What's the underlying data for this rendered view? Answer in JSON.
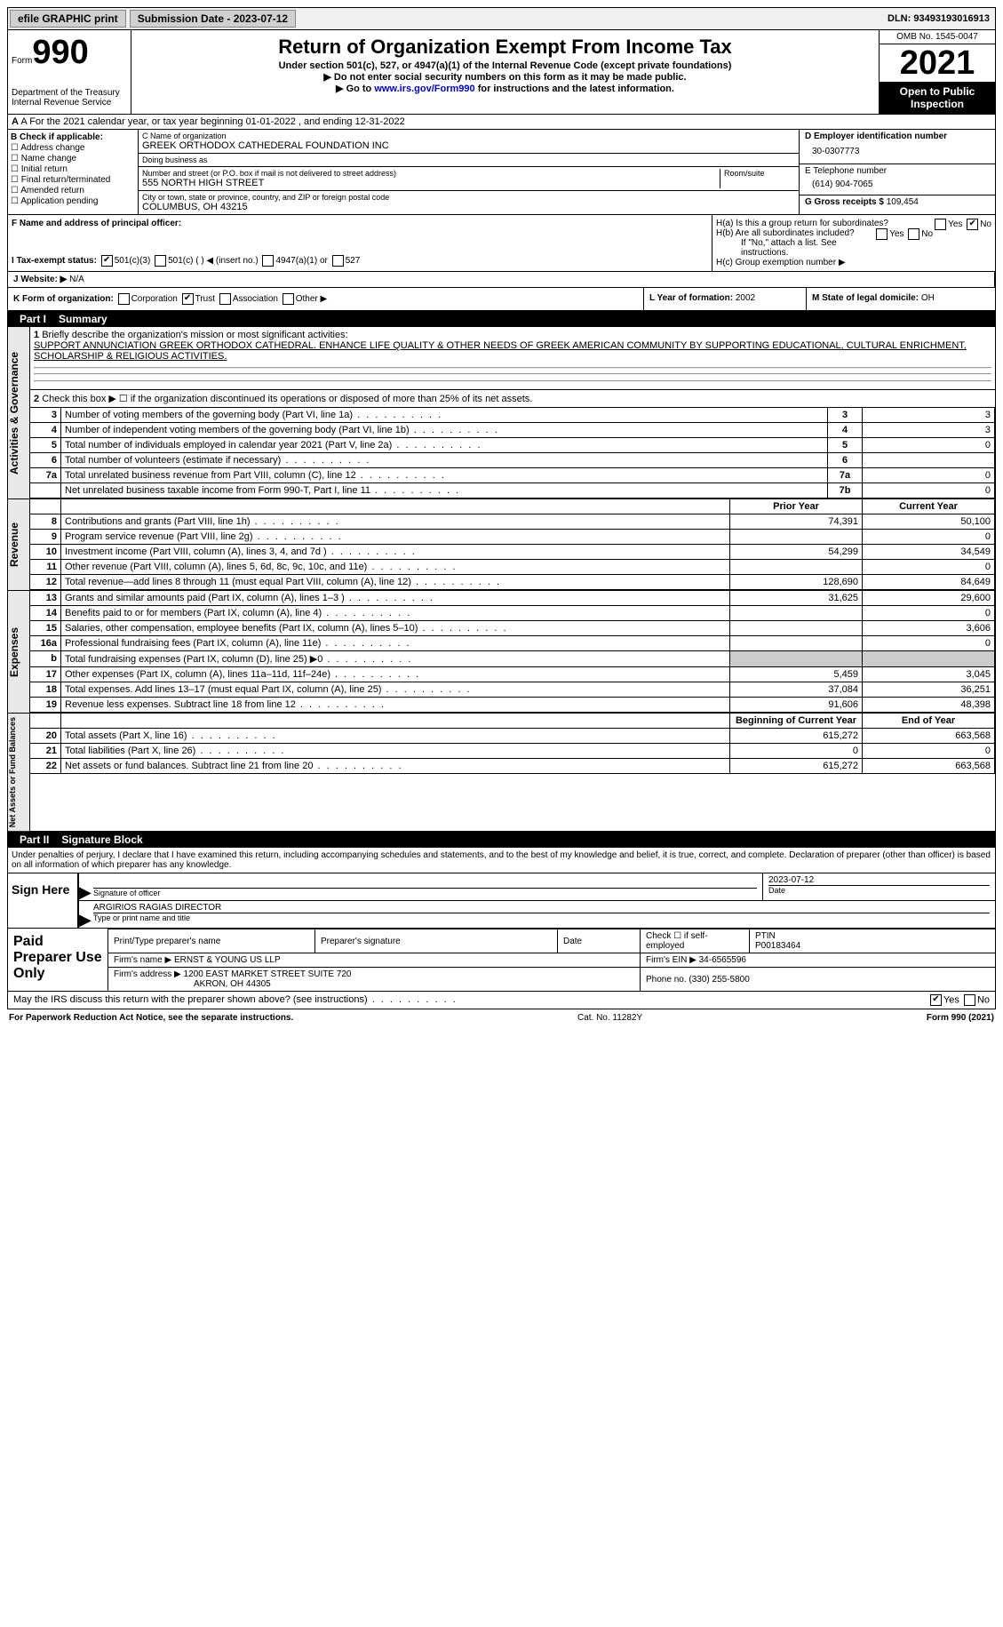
{
  "topbar": {
    "efile": "efile GRAPHIC print",
    "sub_lbl": "Submission Date - 2023-07-12",
    "dln": "DLN: 93493193016913"
  },
  "header": {
    "form_word": "Form",
    "form_no": "990",
    "dept": "Department of the Treasury",
    "irs": "Internal Revenue Service",
    "title": "Return of Organization Exempt From Income Tax",
    "sub1": "Under section 501(c), 527, or 4947(a)(1) of the Internal Revenue Code (except private foundations)",
    "sub2": "Do not enter social security numbers on this form as it may be made public.",
    "sub3": "Go to www.irs.gov/Form990 for instructions and the latest information.",
    "link": "www.irs.gov/Form990",
    "omb": "OMB No. 1545-0047",
    "year": "2021",
    "pub": "Open to Public Inspection"
  },
  "lineA": "A For the 2021 calendar year, or tax year beginning 01-01-2022   , and ending 12-31-2022",
  "B": {
    "hdr": "B Check if applicable:",
    "opts": [
      "Address change",
      "Name change",
      "Initial return",
      "Final return/terminated",
      "Amended return",
      "Application pending"
    ]
  },
  "C": {
    "name_lbl": "C Name of organization",
    "name": "GREEK ORTHODOX CATHEDERAL FOUNDATION INC",
    "dba_lbl": "Doing business as",
    "dba": "",
    "addr_lbl": "Number and street (or P.O. box if mail is not delivered to street address)",
    "room_lbl": "Room/suite",
    "addr": "555 NORTH HIGH STREET",
    "city_lbl": "City or town, state or province, country, and ZIP or foreign postal code",
    "city": "COLUMBUS, OH  43215"
  },
  "D": {
    "lbl": "D Employer identification number",
    "val": "30-0307773"
  },
  "E": {
    "lbl": "E Telephone number",
    "val": "(614) 904-7065"
  },
  "G": {
    "lbl": "G Gross receipts $",
    "val": "109,454"
  },
  "F": {
    "lbl": "F Name and address of principal officer:",
    "val": ""
  },
  "H": {
    "a": "H(a)  Is this a group return for subordinates?",
    "b": "H(b)  Are all subordinates included?",
    "b2": "If \"No,\" attach a list. See instructions.",
    "c": "H(c)  Group exemption number ▶"
  },
  "I": {
    "lbl": "I   Tax-exempt status:",
    "opts": [
      "501(c)(3)",
      "501(c) (  ) ◀ (insert no.)",
      "4947(a)(1) or",
      "527"
    ]
  },
  "J": {
    "lbl": "J   Website: ▶",
    "val": "N/A"
  },
  "K": {
    "lbl": "K Form of organization:",
    "opts": [
      "Corporation",
      "Trust",
      "Association",
      "Other ▶"
    ]
  },
  "L": {
    "lbl": "L Year of formation:",
    "val": "2002"
  },
  "M": {
    "lbl": "M State of legal domicile:",
    "val": "OH"
  },
  "parts": {
    "p1": "Part I",
    "p1t": "Summary",
    "p2": "Part II",
    "p2t": "Signature Block"
  },
  "summary": {
    "l1_lbl": "Briefly describe the organization's mission or most significant activities:",
    "l1_txt": "SUPPORT ANNUNCIATION GREEK ORTHODOX CATHEDRAL. ENHANCE LIFE QUALITY & OTHER NEEDS OF GREEK AMERICAN COMMUNITY BY SUPPORTING EDUCATIONAL, CULTURAL ENRICHMENT, SCHOLARSHIP & RELIGIOUS ACTIVITIES.",
    "l2": "Check this box ▶ ☐ if the organization discontinued its operations or disposed of more than 25% of its net assets.",
    "rows_gov": [
      {
        "n": "3",
        "d": "Number of voting members of the governing body (Part VI, line 1a)",
        "b": "3",
        "v": "3"
      },
      {
        "n": "4",
        "d": "Number of independent voting members of the governing body (Part VI, line 1b)",
        "b": "4",
        "v": "3"
      },
      {
        "n": "5",
        "d": "Total number of individuals employed in calendar year 2021 (Part V, line 2a)",
        "b": "5",
        "v": "0"
      },
      {
        "n": "6",
        "d": "Total number of volunteers (estimate if necessary)",
        "b": "6",
        "v": ""
      },
      {
        "n": "7a",
        "d": "Total unrelated business revenue from Part VIII, column (C), line 12",
        "b": "7a",
        "v": "0"
      },
      {
        "n": "",
        "d": "Net unrelated business taxable income from Form 990-T, Part I, line 11",
        "b": "7b",
        "v": "0"
      }
    ],
    "col_hdr_prior": "Prior Year",
    "col_hdr_curr": "Current Year",
    "rows_rev": [
      {
        "n": "8",
        "d": "Contributions and grants (Part VIII, line 1h)",
        "p": "74,391",
        "c": "50,100"
      },
      {
        "n": "9",
        "d": "Program service revenue (Part VIII, line 2g)",
        "p": "",
        "c": "0"
      },
      {
        "n": "10",
        "d": "Investment income (Part VIII, column (A), lines 3, 4, and 7d )",
        "p": "54,299",
        "c": "34,549"
      },
      {
        "n": "11",
        "d": "Other revenue (Part VIII, column (A), lines 5, 6d, 8c, 9c, 10c, and 11e)",
        "p": "",
        "c": "0"
      },
      {
        "n": "12",
        "d": "Total revenue—add lines 8 through 11 (must equal Part VIII, column (A), line 12)",
        "p": "128,690",
        "c": "84,649"
      }
    ],
    "rows_exp": [
      {
        "n": "13",
        "d": "Grants and similar amounts paid (Part IX, column (A), lines 1–3 )",
        "p": "31,625",
        "c": "29,600"
      },
      {
        "n": "14",
        "d": "Benefits paid to or for members (Part IX, column (A), line 4)",
        "p": "",
        "c": "0"
      },
      {
        "n": "15",
        "d": "Salaries, other compensation, employee benefits (Part IX, column (A), lines 5–10)",
        "p": "",
        "c": "3,606"
      },
      {
        "n": "16a",
        "d": "Professional fundraising fees (Part IX, column (A), line 11e)",
        "p": "",
        "c": "0"
      },
      {
        "n": "b",
        "d": "Total fundraising expenses (Part IX, column (D), line 25) ▶0",
        "p": "shade",
        "c": "shade"
      },
      {
        "n": "17",
        "d": "Other expenses (Part IX, column (A), lines 11a–11d, 11f–24e)",
        "p": "5,459",
        "c": "3,045"
      },
      {
        "n": "18",
        "d": "Total expenses. Add lines 13–17 (must equal Part IX, column (A), line 25)",
        "p": "37,084",
        "c": "36,251"
      },
      {
        "n": "19",
        "d": "Revenue less expenses. Subtract line 18 from line 12",
        "p": "91,606",
        "c": "48,398"
      }
    ],
    "col_hdr_beg": "Beginning of Current Year",
    "col_hdr_end": "End of Year",
    "rows_net": [
      {
        "n": "20",
        "d": "Total assets (Part X, line 16)",
        "p": "615,272",
        "c": "663,568"
      },
      {
        "n": "21",
        "d": "Total liabilities (Part X, line 26)",
        "p": "0",
        "c": "0"
      },
      {
        "n": "22",
        "d": "Net assets or fund balances. Subtract line 21 from line 20",
        "p": "615,272",
        "c": "663,568"
      }
    ]
  },
  "side_labels": {
    "gov": "Activities & Governance",
    "rev": "Revenue",
    "exp": "Expenses",
    "net": "Net Assets or Fund Balances"
  },
  "sig": {
    "decl": "Under penalties of perjury, I declare that I have examined this return, including accompanying schedules and statements, and to the best of my knowledge and belief, it is true, correct, and complete. Declaration of preparer (other than officer) is based on all information of which preparer has any knowledge.",
    "sign_here": "Sign Here",
    "sig_lbl": "Signature of officer",
    "date_lbl": "Date",
    "date": "2023-07-12",
    "name": "ARGIRIOS RAGIAS  DIRECTOR",
    "name_lbl": "Type or print name and title"
  },
  "prep": {
    "lbl": "Paid Preparer Use Only",
    "r1": {
      "c1": "Print/Type preparer's name",
      "c2": "Preparer's signature",
      "c3": "Date",
      "c4_lbl": "Check ☐ if self-employed",
      "c5_lbl": "PTIN",
      "c5": "P00183464"
    },
    "r2": {
      "lbl": "Firm's name    ▶",
      "val": "ERNST & YOUNG US LLP",
      "ein_lbl": "Firm's EIN ▶",
      "ein": "34-6565596"
    },
    "r3": {
      "lbl": "Firm's address ▶",
      "val1": "1200 EAST MARKET STREET SUITE 720",
      "val2": "AKRON, OH  44305",
      "ph_lbl": "Phone no.",
      "ph": "(330) 255-5800"
    }
  },
  "may_irs": "May the IRS discuss this return with the preparer shown above? (see instructions)",
  "footer": {
    "left": "For Paperwork Reduction Act Notice, see the separate instructions.",
    "mid": "Cat. No. 11282Y",
    "right": "Form 990 (2021)"
  },
  "yesno": {
    "yes": "Yes",
    "no": "No"
  }
}
